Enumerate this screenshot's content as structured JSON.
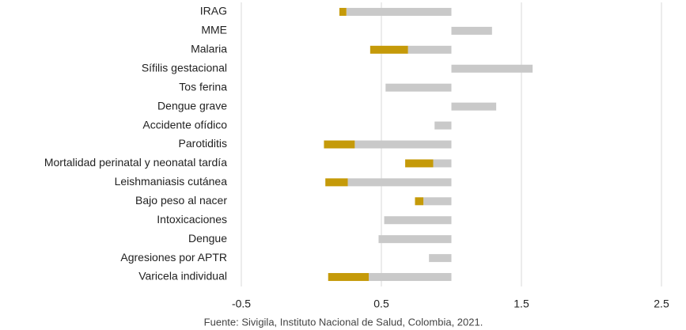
{
  "chart_data": {
    "type": "range-bar",
    "orientation": "horizontal",
    "source": "Fuente: Sivigila, Instituto Nacional de Salud, Colombia, 2021.",
    "categories": [
      "IRAG",
      "MME",
      "Malaria",
      "Sífilis gestacional",
      "Tos ferina",
      "Dengue grave",
      "Accidente ofídico",
      "Parotiditis",
      "Mortalidad perinatal y neonatal tardía",
      "Leishmaniasis cutánea",
      "Bajo peso al nacer",
      "Intoxicaciones",
      "Dengue",
      "Agresiones por APTR",
      "Varicela individual"
    ],
    "baseline": 1,
    "values": [
      0.25,
      1.29,
      0.69,
      1.58,
      0.53,
      1.32,
      0.88,
      0.31,
      0.87,
      0.26,
      0.8,
      0.52,
      0.48,
      0.84,
      0.41
    ],
    "color": "#c9c9c9",
    "highlight": {
      "color": "#c59a09",
      "low": [
        0.2,
        null,
        0.42,
        null,
        null,
        null,
        null,
        0.09,
        0.67,
        0.1,
        0.74,
        null,
        null,
        null,
        0.12
      ],
      "high": [
        0.25,
        null,
        0.69,
        null,
        null,
        null,
        null,
        0.31,
        0.87,
        0.26,
        0.8,
        null,
        null,
        null,
        0.41
      ]
    },
    "xlim": [
      -0.5,
      2.5
    ],
    "xticks": [
      -0.5,
      0.5,
      1.5,
      2.5
    ],
    "grid": true
  }
}
